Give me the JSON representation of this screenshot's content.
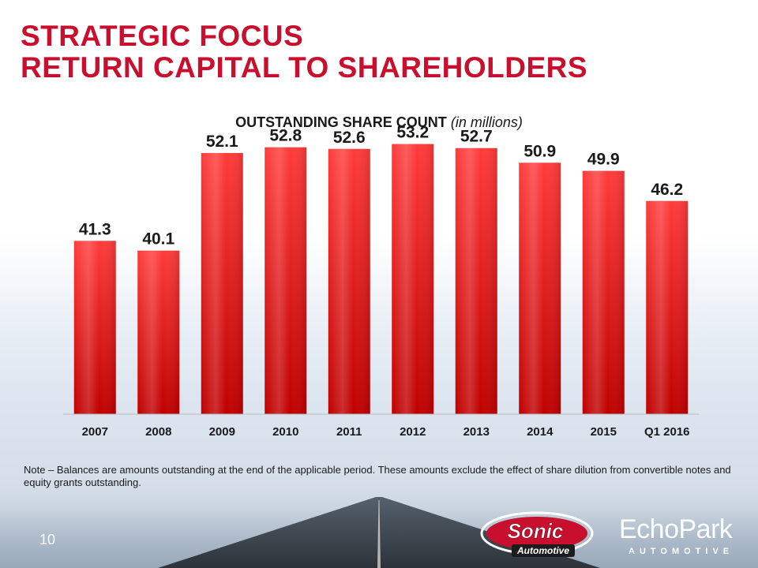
{
  "slide": {
    "title_line1": "STRATEGIC FOCUS",
    "title_line2": "RETURN CAPITAL TO SHAREHOLDERS",
    "note": "Note – Balances are amounts outstanding at the end of the applicable period.  These amounts exclude the effect of share dilution from convertible notes and equity grants outstanding.",
    "page_number": "10",
    "logos": {
      "sonic": "Sonic Automotive",
      "echopark": "EchoPark AUTOMOTIVE"
    }
  },
  "colors": {
    "title": "#c8102e",
    "bar_top": "#ff3b3b",
    "bar_bottom": "#c00000"
  },
  "chart_data": {
    "type": "bar",
    "title": "OUTSTANDING SHARE COUNT",
    "title_unit": "(in millions)",
    "categories": [
      "2007",
      "2008",
      "2009",
      "2010",
      "2011",
      "2012",
      "2013",
      "2014",
      "2015",
      "Q1 2016"
    ],
    "values": [
      41.3,
      40.1,
      52.1,
      52.8,
      52.6,
      53.2,
      52.7,
      50.9,
      49.9,
      46.2
    ],
    "data_labels": [
      "41.3",
      "40.1",
      "52.1",
      "52.8",
      "52.6",
      "53.2",
      "52.7",
      "50.9",
      "49.9",
      "46.2"
    ],
    "ylim": [
      20,
      55
    ],
    "grid": false,
    "legend": "none"
  }
}
